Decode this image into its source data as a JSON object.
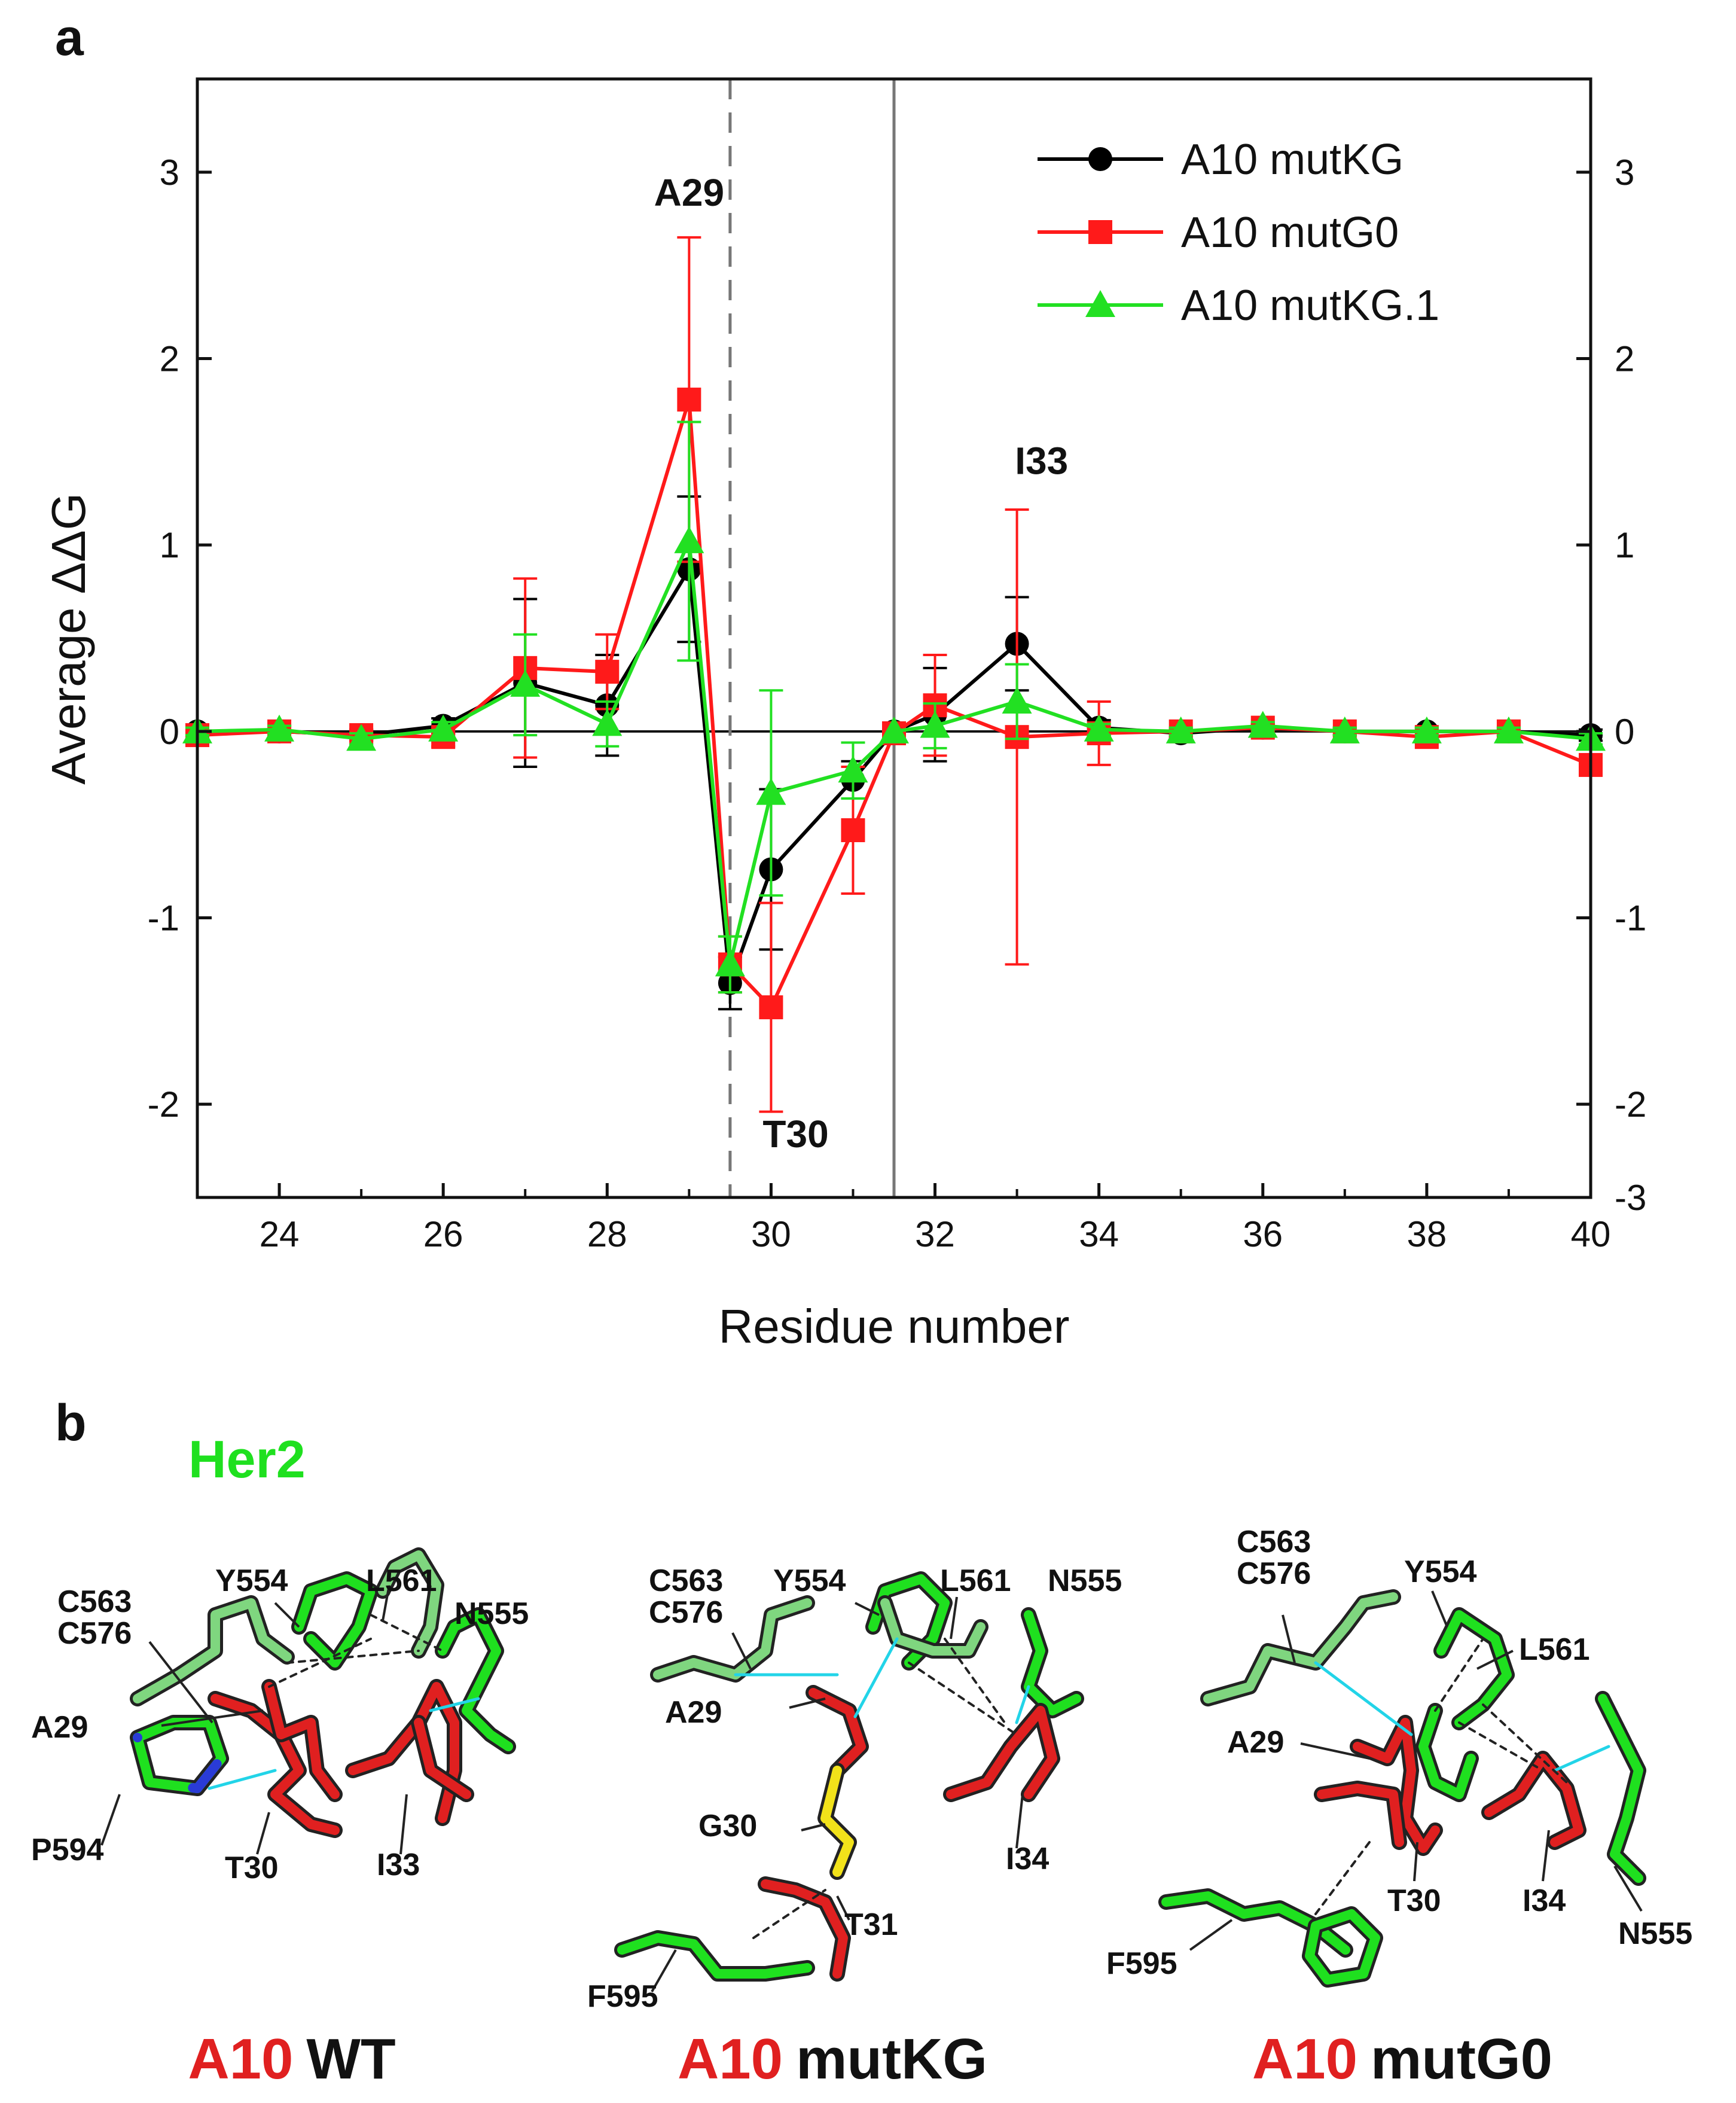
{
  "panel_a": {
    "label": "a"
  },
  "panel_b": {
    "label": "b",
    "her2_label": "Her2",
    "colors": {
      "her2": "#1fe01f",
      "a10": "#e02020",
      "gly": "#f2e21a",
      "n": "#2a3bd6",
      "o": "#e8a12a",
      "s": "#a85bc8",
      "hbond": "#22d4e8"
    },
    "structures": [
      {
        "prefix": "A10",
        "suffix": "WT",
        "labels": [
          "C563",
          "C576",
          "Y554",
          "L561",
          "N555",
          "A29",
          "P594",
          "T30",
          "I33"
        ]
      },
      {
        "prefix": "A10",
        "suffix": "mutKG",
        "labels": [
          "C563",
          "C576",
          "Y554",
          "L561",
          "N555",
          "A29",
          "G30",
          "T31",
          "I34",
          "F595"
        ]
      },
      {
        "prefix": "A10",
        "suffix": "mutG0",
        "labels": [
          "C563",
          "C576",
          "Y554",
          "L561",
          "A29",
          "T30",
          "I34",
          "N555",
          "F595"
        ]
      }
    ]
  },
  "chart_data": {
    "type": "line",
    "xlabel": "Residue number",
    "ylabel": "Average ΔΔG",
    "xlim": [
      23,
      40
    ],
    "ylim": [
      -2.5,
      3.5
    ],
    "x_ticks": [
      24,
      26,
      28,
      30,
      32,
      34,
      36,
      38,
      40
    ],
    "y_ticks_left": [
      -2,
      -1,
      0,
      1,
      2,
      3
    ],
    "y_ticks_right": [
      -3,
      -2,
      -1,
      0,
      1,
      2,
      3
    ],
    "y_ticks_right_values": [
      -2.5,
      -2,
      -1,
      0,
      1,
      2,
      3
    ],
    "vertical_lines": [
      {
        "x": 29.5,
        "style": "dashed",
        "color": "#777777"
      },
      {
        "x": 31.5,
        "style": "solid",
        "color": "#777777"
      }
    ],
    "annotations": [
      {
        "text": "A29",
        "x": 29,
        "y": 2.82
      },
      {
        "text": "T30",
        "x": 30.3,
        "y": -2.23
      },
      {
        "text": "I33",
        "x": 33.3,
        "y": 1.38
      }
    ],
    "legend_position": "top-right",
    "series": [
      {
        "name": "A10 mutKG",
        "color": "#000000",
        "marker": "circle",
        "x": [
          23,
          24,
          25,
          26,
          27,
          28,
          29,
          29.5,
          30,
          31,
          31.5,
          32,
          33,
          34,
          35,
          36,
          37,
          38,
          39,
          40
        ],
        "y": [
          0,
          0,
          -0.02,
          0.03,
          0.26,
          0.14,
          0.87,
          -1.35,
          -0.74,
          -0.26,
          0,
          0.09,
          0.47,
          0.02,
          -0.01,
          0.02,
          0,
          0,
          0,
          -0.02
        ],
        "err": [
          0.03,
          0.03,
          0.03,
          0.04,
          0.45,
          0.27,
          0.39,
          0.14,
          0.43,
          0.1,
          0,
          0.25,
          0.25,
          0.04,
          0.02,
          0.02,
          0.02,
          0.02,
          0.02,
          0.03
        ]
      },
      {
        "name": "A10 mutG0",
        "color": "#ff1a1a",
        "marker": "square",
        "x": [
          23,
          24,
          25,
          26,
          27,
          28,
          29,
          29.5,
          30,
          31,
          31.5,
          32,
          33,
          34,
          35,
          36,
          37,
          38,
          39,
          40
        ],
        "y": [
          -0.02,
          0,
          -0.02,
          -0.03,
          0.34,
          0.32,
          1.78,
          -1.25,
          -1.48,
          -0.53,
          -0.01,
          0.14,
          -0.03,
          -0.01,
          0,
          0.02,
          0,
          -0.03,
          0,
          -0.18
        ],
        "err": [
          0.03,
          0.03,
          0.03,
          0.05,
          0.48,
          0.2,
          0.87,
          0.15,
          0.56,
          0.34,
          0.02,
          0.27,
          1.22,
          0.17,
          0.02,
          0.02,
          0.02,
          0.03,
          0.02,
          0.04
        ]
      },
      {
        "name": "A10 mutKG.1",
        "color": "#22e022",
        "marker": "triangle",
        "x": [
          23,
          24,
          25,
          26,
          27,
          28,
          29,
          29.5,
          30,
          31,
          31.5,
          32,
          33,
          34,
          35,
          36,
          37,
          38,
          39,
          40
        ],
        "y": [
          0,
          0.01,
          -0.04,
          0.01,
          0.25,
          0.04,
          1.02,
          -1.25,
          -0.33,
          -0.21,
          0,
          0.03,
          0.16,
          0.01,
          0,
          0.03,
          0,
          0,
          0,
          -0.04
        ],
        "err": [
          0.02,
          0.02,
          0.03,
          0.04,
          0.27,
          0.12,
          0.64,
          0.15,
          0.55,
          0.15,
          0,
          0.12,
          0.2,
          0.03,
          0.02,
          0.02,
          0.02,
          0.02,
          0.02,
          0.03
        ]
      }
    ]
  }
}
